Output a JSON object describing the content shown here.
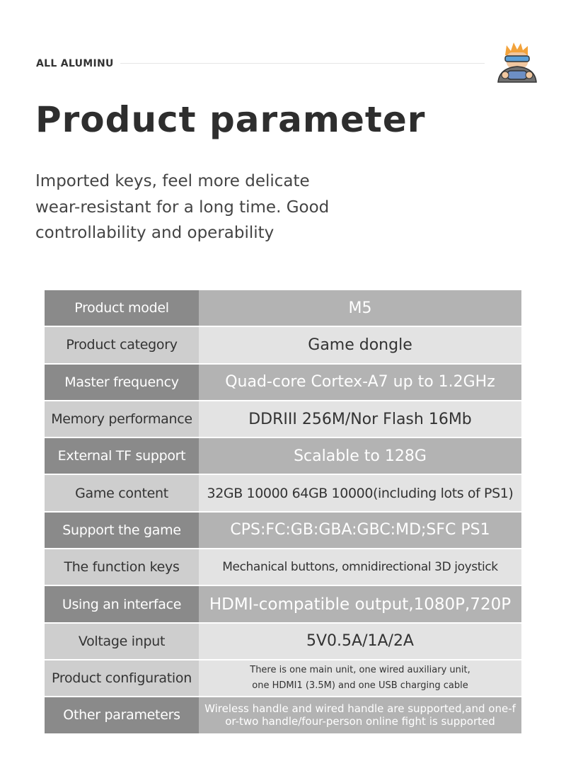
{
  "header": {
    "label": "ALL ALUMINU",
    "title": "Product parameter",
    "description": "Imported keys, feel more delicate wear-resistant for a long time. Good controllability and operability",
    "mascot_icon": "gamer-mascot-icon"
  },
  "colors": {
    "dark_key": "#8a8a8a",
    "dark_value": "#b3b3b3",
    "light_key": "#cecece",
    "light_value": "#e3e3e3"
  },
  "table": [
    {
      "key": "Product model",
      "value": "M5"
    },
    {
      "key": "Product category",
      "value": "Game dongle"
    },
    {
      "key": "Master frequency",
      "value": "Quad-core Cortex-A7 up to 1.2GHz"
    },
    {
      "key": "Memory performance",
      "value": "DDRIII 256M/Nor Flash 16Mb"
    },
    {
      "key": "External TF support",
      "value": "Scalable to 128G"
    },
    {
      "key": "Game content",
      "value": "32GB 10000 64GB 10000(including lots of PS1)"
    },
    {
      "key": "Support the game",
      "value": "CPS:FC:GB:GBA:GBC:MD;SFC PS1"
    },
    {
      "key": "The function keys",
      "value": "Mechanical buttons, omnidirectional 3D joystick"
    },
    {
      "key": "Using an interface",
      "value": "HDMI-compatible output,1080P,720P"
    },
    {
      "key": "Voltage input",
      "value": "5V0.5A/1A/2A"
    },
    {
      "key": "Product configuration",
      "value": "There is one main unit, one wired auxiliary unit, one HDMI1 (3.5M) and one USB charging cable"
    },
    {
      "key": "Other parameters",
      "value": "Wireless handle and wired handle are supported,and one-for-two handle/four-person online fight is supported"
    }
  ]
}
